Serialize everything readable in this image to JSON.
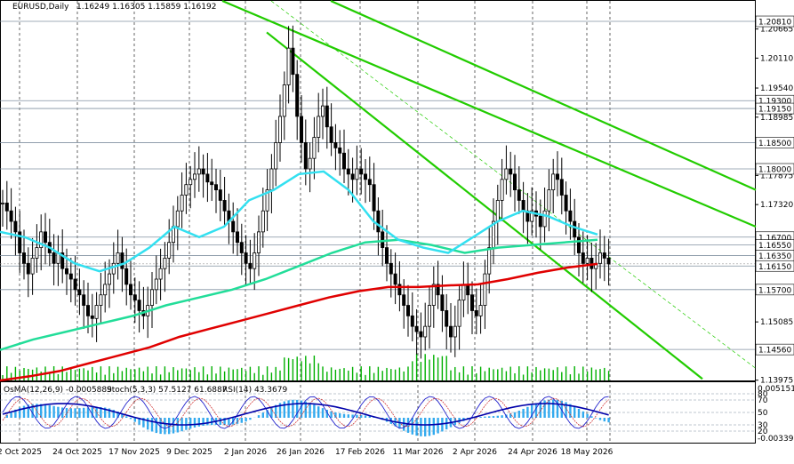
{
  "window": {
    "symbol_header": "EURUSD,Daily",
    "ohlc_header": "1.16249 1.16305 1.15859 1.16192",
    "current_price": "1.16192"
  },
  "indicators": {
    "osma_label": "OsMA(12,26,9) -0.0005889",
    "stoch_label": "Stoch(5,3,3) 57.5127 61.6887",
    "rsi_label": "RSI(14) 43.3679",
    "scale_top": "0.0051514",
    "scale_bottom": "-0.00339",
    "levels": [
      "80",
      "70",
      "50",
      "30",
      "20"
    ]
  },
  "colors": {
    "background": "#ffffff",
    "candles": "#000000",
    "ema200": "#e00000",
    "ema144": "#22dd99",
    "ema50": "#33e0f0",
    "channel": "#22cc00",
    "volume": "#00b000",
    "histogram": "#33aaee",
    "signal": "#0000aa",
    "level_line": "#8090a0"
  },
  "chart_data": {
    "type": "candlestick",
    "title": "EURUSD,Daily",
    "ylim": [
      1.1397,
      1.212
    ],
    "y_ticks": [
      "1.20665",
      "1.20110",
      "1.19540",
      "1.18985",
      "1.17875",
      "1.17320",
      "1.15085",
      "1.13975"
    ],
    "level_labels": [
      "1.20810",
      "1.19300",
      "1.19150",
      "1.18500",
      "1.18000",
      "1.16700",
      "1.16550",
      "1.16350",
      "1.16150",
      "1.15700",
      "1.14560"
    ],
    "x_ticks": [
      "2 Oct 2025",
      "24 Oct 2025",
      "17 Nov 2025",
      "9 Dec 2025",
      "2 Jan 2026",
      "26 Jan 2026",
      "17 Feb 2026",
      "11 Mar 2026",
      "2 Apr 2026",
      "24 Apr 2026",
      "18 May 2026"
    ],
    "close_series": [
      1.1735,
      1.172,
      1.17,
      1.168,
      1.164,
      1.162,
      1.16,
      1.163,
      1.165,
      1.168,
      1.166,
      1.164,
      1.162,
      1.164,
      1.161,
      1.16,
      1.159,
      1.157,
      1.156,
      1.154,
      1.152,
      1.1515,
      1.154,
      1.156,
      1.158,
      1.16,
      1.162,
      1.164,
      1.161,
      1.158,
      1.156,
      1.155,
      1.153,
      1.152,
      1.154,
      1.157,
      1.159,
      1.161,
      1.163,
      1.166,
      1.169,
      1.172,
      1.175,
      1.177,
      1.178,
      1.179,
      1.18,
      1.179,
      1.1775,
      1.177,
      1.176,
      1.174,
      1.172,
      1.17,
      1.168,
      1.166,
      1.164,
      1.162,
      1.161,
      1.164,
      1.168,
      1.172,
      1.176,
      1.18,
      1.185,
      1.19,
      1.196,
      1.203,
      1.198,
      1.19,
      1.185,
      1.18,
      1.182,
      1.186,
      1.19,
      1.192,
      1.188,
      1.185,
      1.184,
      1.183,
      1.18,
      1.179,
      1.178,
      1.18,
      1.179,
      1.178,
      1.177,
      1.172,
      1.168,
      1.165,
      1.162,
      1.16,
      1.158,
      1.156,
      1.154,
      1.152,
      1.15,
      1.149,
      1.148,
      1.15,
      1.154,
      1.158,
      1.156,
      1.153,
      1.15,
      1.148,
      1.15,
      1.155,
      1.158,
      1.156,
      1.153,
      1.152,
      1.154,
      1.16,
      1.165,
      1.17,
      1.174,
      1.178,
      1.18,
      1.179,
      1.176,
      1.174,
      1.172,
      1.17,
      1.172,
      1.171,
      1.169,
      1.172,
      1.176,
      1.179,
      1.178,
      1.175,
      1.172,
      1.17,
      1.167,
      1.164,
      1.162,
      1.163,
      1.161,
      1.162,
      1.164,
      1.163,
      1.1619
    ],
    "series": [
      {
        "name": "EMA 200",
        "values": [
          1.1397,
          1.1405,
          1.1415,
          1.143,
          1.1445,
          1.146,
          1.148,
          1.1495,
          1.151,
          1.1525,
          1.154,
          1.1555,
          1.1567,
          1.1575,
          1.1575,
          1.1578,
          1.158,
          1.159,
          1.1602,
          1.1612,
          1.1619
        ]
      },
      {
        "name": "EMA 144",
        "values": [
          1.1455,
          1.1475,
          1.149,
          1.1505,
          1.152,
          1.154,
          1.1555,
          1.157,
          1.159,
          1.1615,
          1.164,
          1.166,
          1.1665,
          1.1655,
          1.164,
          1.165,
          1.1655,
          1.166,
          1.1665
        ]
      },
      {
        "name": "EMA 50",
        "values": [
          1.168,
          1.167,
          1.165,
          1.162,
          1.1605,
          1.162,
          1.165,
          1.169,
          1.167,
          1.169,
          1.174,
          1.176,
          1.179,
          1.1795,
          1.176,
          1.17,
          1.1665,
          1.165,
          1.164,
          1.167,
          1.17,
          1.172,
          1.171,
          1.169,
          1.1675
        ]
      }
    ]
  }
}
